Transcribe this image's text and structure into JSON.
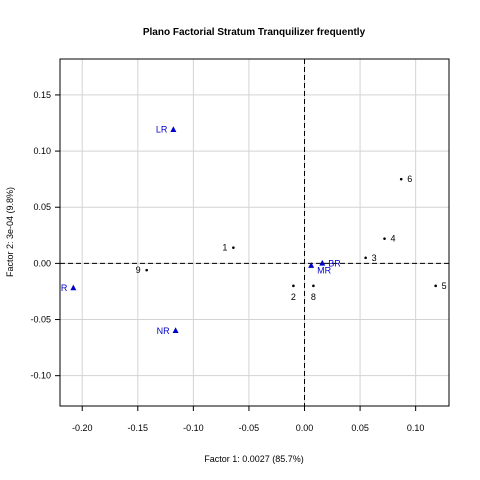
{
  "chart_data": {
    "type": "scatter",
    "title": "Plano Factorial Stratum Tranquilizer frequently",
    "xlabel": "Factor 1: 0.0027 (85.7%)",
    "ylabel": "Factor 2: 3e-04 (9.8%)",
    "xlim": [
      -0.22,
      0.13
    ],
    "ylim": [
      -0.127,
      0.182
    ],
    "x_ticks": [
      -0.2,
      -0.15,
      -0.1,
      -0.05,
      0.0,
      0.05,
      0.1
    ],
    "x_tick_labels": [
      "-0.20",
      "-0.15",
      "-0.10",
      "-0.05",
      "0.00",
      "0.05",
      "0.10"
    ],
    "y_ticks": [
      -0.1,
      -0.05,
      0.0,
      0.05,
      0.1,
      0.15
    ],
    "y_tick_labels": [
      "-0.10",
      "-0.05",
      "0.00",
      "0.05",
      "0.10",
      "0.15"
    ],
    "grid": true,
    "reference_lines": {
      "x": 0,
      "y": 0,
      "style": "dashed"
    },
    "colors": {
      "rows": "#000000",
      "columns": "#0000cd",
      "grid": "#d3d3d3"
    },
    "series": [
      {
        "marker": "dot",
        "color": "#000000",
        "points": [
          {
            "label": "1",
            "x": -0.064,
            "y": 0.014,
            "label_pos": "left"
          },
          {
            "label": "2",
            "x": -0.01,
            "y": -0.02,
            "label_pos": "below"
          },
          {
            "label": "3",
            "x": 0.055,
            "y": 0.005,
            "label_pos": "right"
          },
          {
            "label": "4",
            "x": 0.072,
            "y": 0.022,
            "label_pos": "right"
          },
          {
            "label": "5",
            "x": 0.118,
            "y": -0.02,
            "label_pos": "right"
          },
          {
            "label": "6",
            "x": 0.087,
            "y": 0.075,
            "label_pos": "right"
          },
          {
            "label": "8",
            "x": 0.008,
            "y": -0.02,
            "label_pos": "below"
          },
          {
            "label": "9",
            "x": -0.142,
            "y": -0.006,
            "label_pos": "left"
          }
        ]
      },
      {
        "marker": "triangle",
        "color": "#0000cd",
        "points": [
          {
            "label": "LR",
            "x": -0.118,
            "y": 0.119,
            "label_pos": "left"
          },
          {
            "label": "NR",
            "x": -0.116,
            "y": -0.06,
            "label_pos": "left"
          },
          {
            "label": "R",
            "x": -0.208,
            "y": -0.022,
            "label_pos": "left"
          },
          {
            "label": "BR",
            "x": 0.016,
            "y": 0.0,
            "label_pos": "right"
          },
          {
            "label": "MR",
            "x": 0.006,
            "y": -0.002,
            "label_pos": "right-below"
          }
        ]
      }
    ]
  }
}
